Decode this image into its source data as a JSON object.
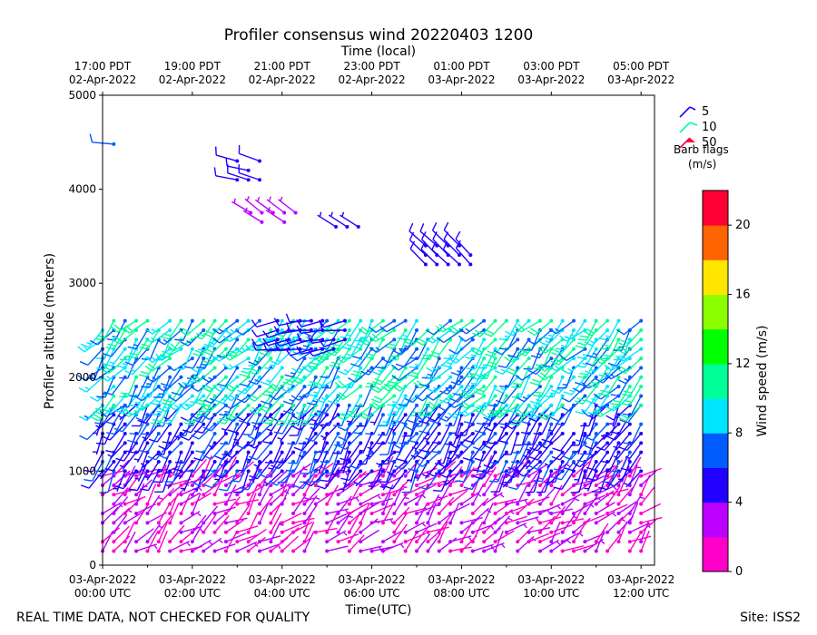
{
  "chart_data": {
    "type": "wind-barb-profile",
    "title": "Profiler consensus wind 20220403 1200",
    "xlabel_top": "Time (local)",
    "xlabel_bottom": "Time(UTC)",
    "ylabel": "Profiler altitude (meters)",
    "ylim": [
      0,
      5000
    ],
    "yticks": [
      "0",
      "1000",
      "2000",
      "3000",
      "4000",
      "5000"
    ],
    "x_hours_utc": [
      0,
      12.3
    ],
    "xticks_bottom": [
      {
        "line1": "03-Apr-2022",
        "line2": "00:00 UTC"
      },
      {
        "line1": "03-Apr-2022",
        "line2": "02:00 UTC"
      },
      {
        "line1": "03-Apr-2022",
        "line2": "04:00 UTC"
      },
      {
        "line1": "03-Apr-2022",
        "line2": "06:00 UTC"
      },
      {
        "line1": "03-Apr-2022",
        "line2": "08:00 UTC"
      },
      {
        "line1": "03-Apr-2022",
        "line2": "10:00 UTC"
      },
      {
        "line1": "03-Apr-2022",
        "line2": "12:00 UTC"
      }
    ],
    "xticks_top": [
      {
        "line1": "17:00 PDT",
        "line2": "02-Apr-2022"
      },
      {
        "line1": "19:00 PDT",
        "line2": "02-Apr-2022"
      },
      {
        "line1": "21:00 PDT",
        "line2": "02-Apr-2022"
      },
      {
        "line1": "23:00 PDT",
        "line2": "02-Apr-2022"
      },
      {
        "line1": "01:00 PDT",
        "line2": "03-Apr-2022"
      },
      {
        "line1": "03:00 PDT",
        "line2": "03-Apr-2022"
      },
      {
        "line1": "05:00 PDT",
        "line2": "03-Apr-2022"
      }
    ],
    "legend": {
      "entries": [
        {
          "label": "5",
          "color": "#2000ff"
        },
        {
          "label": "10",
          "color": "#00ffa0"
        },
        {
          "label": "50",
          "color": "#ff0040"
        }
      ],
      "caption_line1": "Barb flags",
      "caption_line2": "(m/s)",
      "placement": "right"
    },
    "colorbar": {
      "label": "Wind speed (m/s)",
      "range": [
        0,
        22
      ],
      "ticks": [
        "0",
        "4",
        "8",
        "12",
        "16",
        "20"
      ],
      "colors": [
        "#ff00c8",
        "#bb00ff",
        "#2200ff",
        "#005cff",
        "#00e6ff",
        "#00ff96",
        "#00ff00",
        "#8cff00",
        "#ffe600",
        "#ff6400",
        "#ff0032"
      ]
    },
    "site": "Site: ISS2",
    "note": "REAL TIME DATA, NOT CHECKED FOR QUALITY",
    "barb_regions": [
      {
        "t0": 0.0,
        "t1": 12.2,
        "h0": 150,
        "h1": 1000,
        "speed": [
          1,
          3
        ],
        "dir": [
          20,
          80
        ]
      },
      {
        "t0": 0.0,
        "t1": 12.2,
        "h0": 1000,
        "h1": 1700,
        "speed": [
          4,
          7
        ],
        "dir": [
          195,
          230
        ]
      },
      {
        "t0": 0.0,
        "t1": 12.2,
        "h0": 1700,
        "h1": 2600,
        "speed": [
          6,
          12
        ],
        "dir": [
          200,
          240
        ]
      },
      {
        "t0": 3.9,
        "t1": 5.5,
        "h0": 2300,
        "h1": 2650,
        "speed": [
          5,
          6
        ],
        "dir": [
          250,
          270
        ]
      },
      {
        "t0": 3.0,
        "t1": 3.6,
        "h0": 4100,
        "h1": 4300,
        "speed": [
          5,
          6
        ],
        "dir": [
          280,
          290
        ]
      },
      {
        "t0": 3.3,
        "t1": 4.3,
        "h0": 3650,
        "h1": 3800,
        "speed": [
          3,
          4
        ],
        "dir": [
          300,
          310
        ]
      },
      {
        "t0": 5.2,
        "t1": 5.9,
        "h0": 3600,
        "h1": 3650,
        "speed": [
          4,
          5
        ],
        "dir": [
          300,
          305
        ]
      },
      {
        "t0": 7.2,
        "t1": 8.4,
        "h0": 3200,
        "h1": 3400,
        "speed": [
          5,
          6
        ],
        "dir": [
          310,
          320
        ]
      }
    ]
  }
}
